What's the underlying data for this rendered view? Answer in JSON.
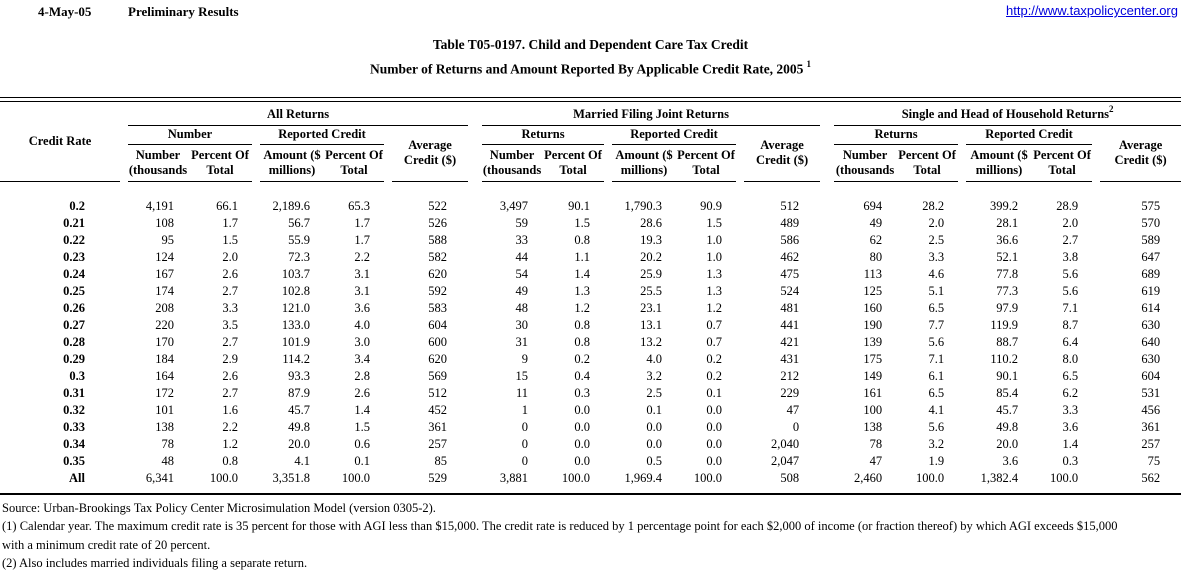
{
  "header": {
    "date": "4-May-05",
    "status": "Preliminary Results",
    "url": "http://www.taxpolicycenter.org"
  },
  "title": {
    "line1": "Table T05-0197. Child and Dependent Care Tax Credit",
    "line2": "Number of Returns and Amount Reported By Applicable Credit Rate, 2005",
    "superscript": "1"
  },
  "table": {
    "credit_rate_header": "Credit Rate",
    "groups": [
      {
        "title": "All Returns",
        "sup": "",
        "returns_label": "Number",
        "credit_label": "Reported Credit"
      },
      {
        "title": "Married Filing Joint Returns",
        "sup": "",
        "returns_label": "Returns",
        "credit_label": "Reported Credit"
      },
      {
        "title": "Single and Head of Household Returns",
        "sup": "2",
        "returns_label": "Returns",
        "credit_label": "Reported Credit"
      }
    ],
    "col_headers": {
      "number": "Number\n(thousands",
      "percent": "Percent Of\nTotal",
      "amount": "Amount ($\nmillions)",
      "average": "Average\nCredit ($)"
    },
    "rows": [
      {
        "rate": "0.2",
        "all": [
          "4,191",
          "66.1",
          "2,189.6",
          "65.3",
          "522"
        ],
        "mfj": [
          "3,497",
          "90.1",
          "1,790.3",
          "90.9",
          "512"
        ],
        "single": [
          "694",
          "28.2",
          "399.2",
          "28.9",
          "575"
        ]
      },
      {
        "rate": "0.21",
        "all": [
          "108",
          "1.7",
          "56.7",
          "1.7",
          "526"
        ],
        "mfj": [
          "59",
          "1.5",
          "28.6",
          "1.5",
          "489"
        ],
        "single": [
          "49",
          "2.0",
          "28.1",
          "2.0",
          "570"
        ]
      },
      {
        "rate": "0.22",
        "all": [
          "95",
          "1.5",
          "55.9",
          "1.7",
          "588"
        ],
        "mfj": [
          "33",
          "0.8",
          "19.3",
          "1.0",
          "586"
        ],
        "single": [
          "62",
          "2.5",
          "36.6",
          "2.7",
          "589"
        ]
      },
      {
        "rate": "0.23",
        "all": [
          "124",
          "2.0",
          "72.3",
          "2.2",
          "582"
        ],
        "mfj": [
          "44",
          "1.1",
          "20.2",
          "1.0",
          "462"
        ],
        "single": [
          "80",
          "3.3",
          "52.1",
          "3.8",
          "647"
        ]
      },
      {
        "rate": "0.24",
        "all": [
          "167",
          "2.6",
          "103.7",
          "3.1",
          "620"
        ],
        "mfj": [
          "54",
          "1.4",
          "25.9",
          "1.3",
          "475"
        ],
        "single": [
          "113",
          "4.6",
          "77.8",
          "5.6",
          "689"
        ]
      },
      {
        "rate": "0.25",
        "all": [
          "174",
          "2.7",
          "102.8",
          "3.1",
          "592"
        ],
        "mfj": [
          "49",
          "1.3",
          "25.5",
          "1.3",
          "524"
        ],
        "single": [
          "125",
          "5.1",
          "77.3",
          "5.6",
          "619"
        ]
      },
      {
        "rate": "0.26",
        "all": [
          "208",
          "3.3",
          "121.0",
          "3.6",
          "583"
        ],
        "mfj": [
          "48",
          "1.2",
          "23.1",
          "1.2",
          "481"
        ],
        "single": [
          "160",
          "6.5",
          "97.9",
          "7.1",
          "614"
        ]
      },
      {
        "rate": "0.27",
        "all": [
          "220",
          "3.5",
          "133.0",
          "4.0",
          "604"
        ],
        "mfj": [
          "30",
          "0.8",
          "13.1",
          "0.7",
          "441"
        ],
        "single": [
          "190",
          "7.7",
          "119.9",
          "8.7",
          "630"
        ]
      },
      {
        "rate": "0.28",
        "all": [
          "170",
          "2.7",
          "101.9",
          "3.0",
          "600"
        ],
        "mfj": [
          "31",
          "0.8",
          "13.2",
          "0.7",
          "421"
        ],
        "single": [
          "139",
          "5.6",
          "88.7",
          "6.4",
          "640"
        ]
      },
      {
        "rate": "0.29",
        "all": [
          "184",
          "2.9",
          "114.2",
          "3.4",
          "620"
        ],
        "mfj": [
          "9",
          "0.2",
          "4.0",
          "0.2",
          "431"
        ],
        "single": [
          "175",
          "7.1",
          "110.2",
          "8.0",
          "630"
        ]
      },
      {
        "rate": "0.3",
        "all": [
          "164",
          "2.6",
          "93.3",
          "2.8",
          "569"
        ],
        "mfj": [
          "15",
          "0.4",
          "3.2",
          "0.2",
          "212"
        ],
        "single": [
          "149",
          "6.1",
          "90.1",
          "6.5",
          "604"
        ]
      },
      {
        "rate": "0.31",
        "all": [
          "172",
          "2.7",
          "87.9",
          "2.6",
          "512"
        ],
        "mfj": [
          "11",
          "0.3",
          "2.5",
          "0.1",
          "229"
        ],
        "single": [
          "161",
          "6.5",
          "85.4",
          "6.2",
          "531"
        ]
      },
      {
        "rate": "0.32",
        "all": [
          "101",
          "1.6",
          "45.7",
          "1.4",
          "452"
        ],
        "mfj": [
          "1",
          "0.0",
          "0.1",
          "0.0",
          "47"
        ],
        "single": [
          "100",
          "4.1",
          "45.7",
          "3.3",
          "456"
        ]
      },
      {
        "rate": "0.33",
        "all": [
          "138",
          "2.2",
          "49.8",
          "1.5",
          "361"
        ],
        "mfj": [
          "0",
          "0.0",
          "0.0",
          "0.0",
          "0"
        ],
        "single": [
          "138",
          "5.6",
          "49.8",
          "3.6",
          "361"
        ]
      },
      {
        "rate": "0.34",
        "all": [
          "78",
          "1.2",
          "20.0",
          "0.6",
          "257"
        ],
        "mfj": [
          "0",
          "0.0",
          "0.0",
          "0.0",
          "2,040"
        ],
        "single": [
          "78",
          "3.2",
          "20.0",
          "1.4",
          "257"
        ]
      },
      {
        "rate": "0.35",
        "all": [
          "48",
          "0.8",
          "4.1",
          "0.1",
          "85"
        ],
        "mfj": [
          "0",
          "0.0",
          "0.5",
          "0.0",
          "2,047"
        ],
        "single": [
          "47",
          "1.9",
          "3.6",
          "0.3",
          "75"
        ]
      },
      {
        "rate": "All",
        "all": [
          "6,341",
          "100.0",
          "3,351.8",
          "100.0",
          "529"
        ],
        "mfj": [
          "3,881",
          "100.0",
          "1,969.4",
          "100.0",
          "508"
        ],
        "single": [
          "2,460",
          "100.0",
          "1,382.4",
          "100.0",
          "562"
        ]
      }
    ]
  },
  "footnotes": [
    "Source: Urban-Brookings Tax Policy Center Microsimulation Model (version 0305-2).",
    "(1) Calendar year. The maximum credit rate is 35 percent for those with AGI less than $15,000.  The credit rate is reduced by 1 percentage point for each $2,000 of income (or fraction thereof) by which AGI exceeds $15,000",
    "with a minimum credit rate of 20 percent.",
    "(2) Also includes married individuals filing a separate return."
  ]
}
